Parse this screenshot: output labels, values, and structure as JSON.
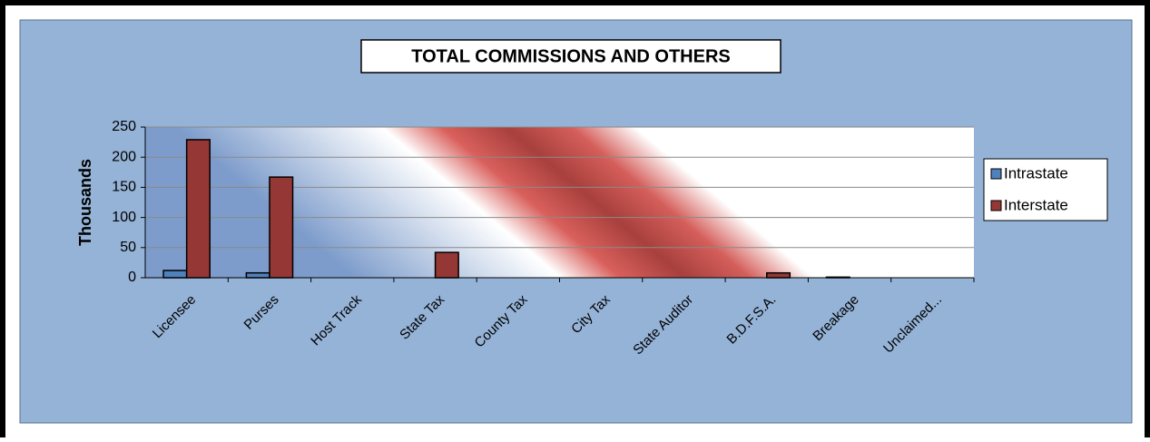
{
  "chart_data": {
    "type": "bar",
    "title": "TOTAL COMMISSIONS AND OTHERS",
    "y_label": "Thousands",
    "categories": [
      "Licensee",
      "Purses",
      "Host Track",
      "State Tax",
      "County Tax",
      "City Tax",
      "State Auditor",
      "B.D.F.S.A.",
      "Breakage",
      "Unclaimed..."
    ],
    "series": [
      {
        "name": "Intrastate",
        "color": "#4f81bd",
        "values": [
          12,
          8,
          0,
          0,
          0,
          0,
          0,
          0,
          1,
          0
        ]
      },
      {
        "name": "Interstate",
        "color": "#953735",
        "values": [
          229,
          167,
          0,
          42,
          0,
          0,
          0,
          8,
          0,
          0
        ]
      }
    ],
    "ylim": [
      0,
      250
    ],
    "yticks": [
      0,
      50,
      100,
      150,
      200,
      250
    ],
    "grid": true,
    "legend": "right"
  }
}
